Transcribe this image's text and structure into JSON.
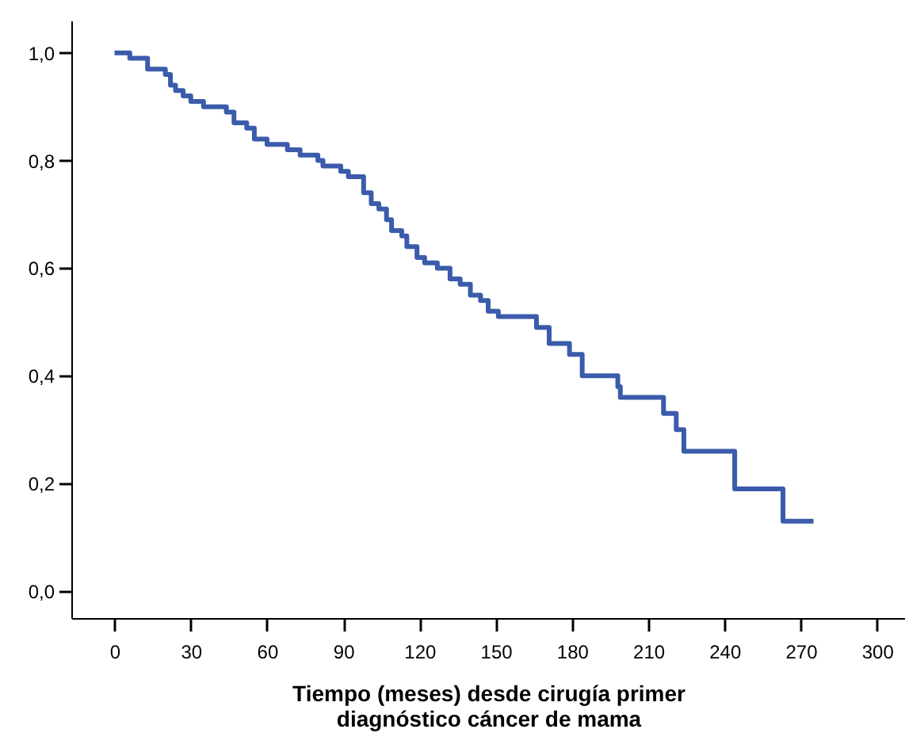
{
  "chart_data": {
    "type": "step",
    "xlabel": "Tiempo (meses) desde cirugía primer diagnóstico cáncer de mama",
    "color": "#3b5bab",
    "line_style": "solid",
    "x": [
      0,
      6,
      10,
      13,
      18,
      20,
      22,
      24,
      27,
      30,
      35,
      44,
      47,
      52,
      55,
      60,
      68,
      73,
      80,
      82,
      89,
      92,
      97,
      98,
      101,
      104,
      107,
      109,
      113,
      115,
      119,
      122,
      127,
      132,
      136,
      140,
      144,
      147,
      151,
      166,
      171,
      179,
      184,
      198,
      199,
      216,
      221,
      224,
      244,
      263,
      275
    ],
    "values": [
      1.0,
      0.99,
      0.99,
      0.97,
      0.97,
      0.96,
      0.94,
      0.93,
      0.92,
      0.91,
      0.9,
      0.89,
      0.87,
      0.86,
      0.84,
      0.83,
      0.82,
      0.81,
      0.8,
      0.79,
      0.78,
      0.77,
      0.77,
      0.74,
      0.72,
      0.71,
      0.69,
      0.67,
      0.66,
      0.64,
      0.62,
      0.61,
      0.6,
      0.58,
      0.57,
      0.55,
      0.54,
      0.52,
      0.51,
      0.49,
      0.46,
      0.44,
      0.4,
      0.38,
      0.36,
      0.33,
      0.3,
      0.26,
      0.19,
      0.13,
      0.13
    ],
    "xlim": [
      -17,
      311
    ],
    "ylim": [
      -0.05,
      1.06
    ],
    "xticks": [
      0,
      30,
      60,
      90,
      120,
      150,
      180,
      210,
      240,
      270,
      300
    ],
    "yticks": [
      {
        "value": 0,
        "label": "0,0"
      },
      {
        "value": 0.2,
        "label": "0,2"
      },
      {
        "value": 0.4,
        "label": "0,4"
      },
      {
        "value": 0.6,
        "label": "0,6"
      },
      {
        "value": 0.8,
        "label": "0,8"
      },
      {
        "value": 1,
        "label": "1,0"
      }
    ]
  }
}
